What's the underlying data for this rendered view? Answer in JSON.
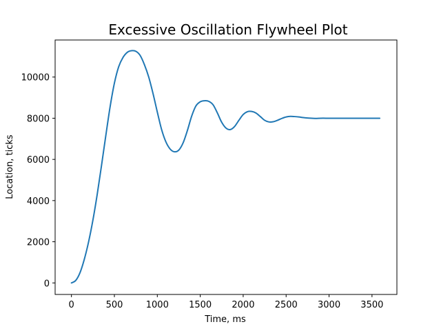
{
  "chart_data": {
    "type": "line",
    "title": "Excessive Oscillation Flywheel Plot",
    "xlabel": "Time, ms",
    "ylabel": "Location, ticks",
    "xlim": [
      -190,
      3790
    ],
    "ylim": [
      -560,
      11800
    ],
    "xticks": [
      0,
      500,
      1000,
      1500,
      2000,
      2500,
      3000,
      3500
    ],
    "yticks": [
      0,
      2000,
      4000,
      6000,
      8000,
      10000
    ],
    "grid": false,
    "line_color": "#1f77b4",
    "series": [
      {
        "x": [
          0,
          50,
          100,
          150,
          200,
          250,
          300,
          350,
          400,
          450,
          500,
          550,
          600,
          650,
          700,
          750,
          800,
          850,
          900,
          950,
          1000,
          1050,
          1100,
          1150,
          1200,
          1250,
          1300,
          1350,
          1400,
          1450,
          1500,
          1550,
          1600,
          1650,
          1700,
          1750,
          1800,
          1850,
          1900,
          1950,
          2000,
          2050,
          2100,
          2150,
          2200,
          2250,
          2300,
          2350,
          2400,
          2450,
          2500,
          2550,
          2600,
          2650,
          2700,
          2750,
          2800,
          2850,
          2900,
          3000,
          3100,
          3200,
          3300,
          3400,
          3500,
          3590
        ],
        "values": [
          0,
          120,
          500,
          1150,
          2000,
          3050,
          4300,
          5700,
          7150,
          8550,
          9700,
          10500,
          10950,
          11200,
          11280,
          11250,
          11050,
          10600,
          10000,
          9200,
          8300,
          7450,
          6850,
          6500,
          6370,
          6450,
          6800,
          7400,
          8100,
          8600,
          8800,
          8850,
          8820,
          8650,
          8250,
          7800,
          7520,
          7450,
          7600,
          7900,
          8180,
          8320,
          8330,
          8250,
          8080,
          7900,
          7820,
          7830,
          7900,
          7990,
          8060,
          8090,
          8080,
          8060,
          8030,
          8010,
          8000,
          7990,
          8000,
          8000,
          8000,
          8000,
          8000,
          8000,
          8000,
          8000
        ]
      }
    ]
  }
}
